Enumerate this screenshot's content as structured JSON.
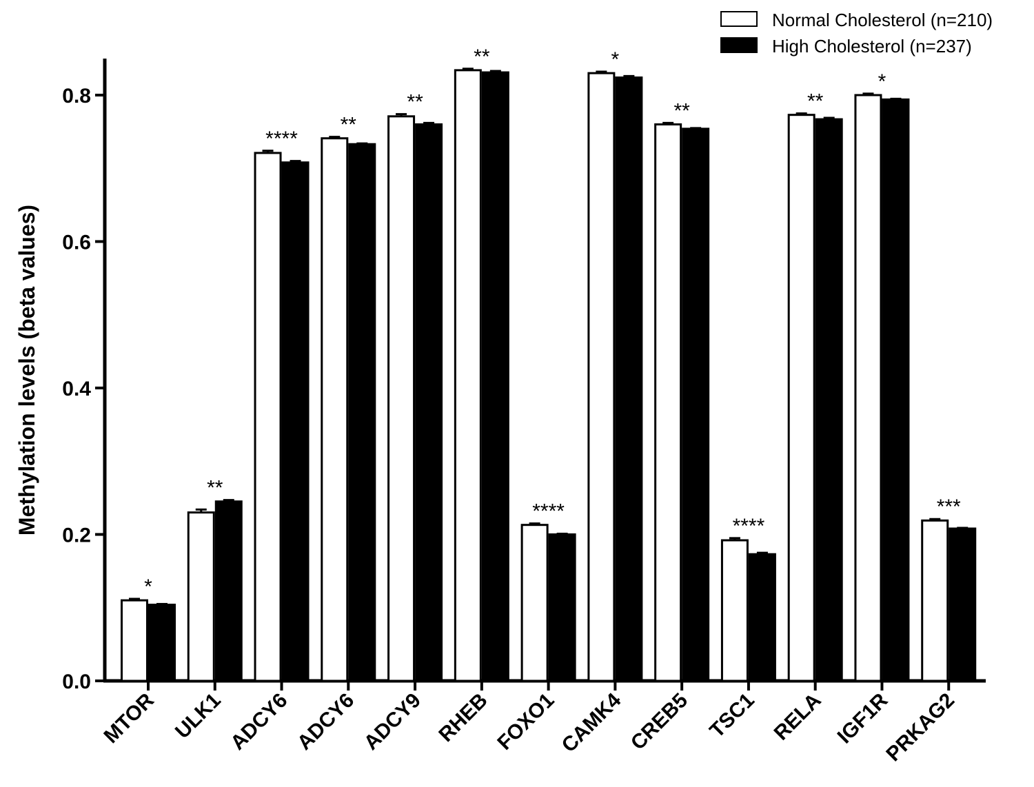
{
  "chart_data": {
    "type": "bar",
    "title": "",
    "xlabel": "",
    "ylabel": "Methylation  levels (beta values)",
    "ylim": [
      0,
      0.85
    ],
    "yticks": [
      "0.0",
      "0.2",
      "0.4",
      "0.6",
      "0.8"
    ],
    "categories": [
      "MTOR",
      "ULK1",
      "ADCY6",
      "ADCY6",
      "ADCY9",
      "RHEB",
      "FOXO1",
      "CAMK4",
      "CREB5",
      "TSC1",
      "RELA",
      "IGF1R",
      "PRKAG2"
    ],
    "series": [
      {
        "name": "Normal Cholesterol (n=210)",
        "fill": "#ffffff",
        "values": [
          0.11,
          0.23,
          0.721,
          0.741,
          0.771,
          0.834,
          0.213,
          0.83,
          0.76,
          0.192,
          0.773,
          0.8,
          0.219
        ],
        "errors": [
          0.002,
          0.004,
          0.003,
          0.002,
          0.003,
          0.002,
          0.002,
          0.002,
          0.002,
          0.003,
          0.002,
          0.002,
          0.002
        ]
      },
      {
        "name": "High Cholesterol (n=237)",
        "fill": "#000000",
        "values": [
          0.104,
          0.245,
          0.708,
          0.733,
          0.76,
          0.831,
          0.2,
          0.824,
          0.754,
          0.173,
          0.767,
          0.794,
          0.208
        ],
        "errors": [
          0.001,
          0.002,
          0.002,
          0.001,
          0.002,
          0.002,
          0.001,
          0.002,
          0.001,
          0.002,
          0.002,
          0.001,
          0.001
        ]
      }
    ],
    "significance": [
      "*",
      "**",
      "****",
      "**",
      "**",
      "**",
      "****",
      "*",
      "**",
      "****",
      "**",
      "*",
      "***"
    ],
    "grid": false,
    "legend_position": "top-right"
  }
}
